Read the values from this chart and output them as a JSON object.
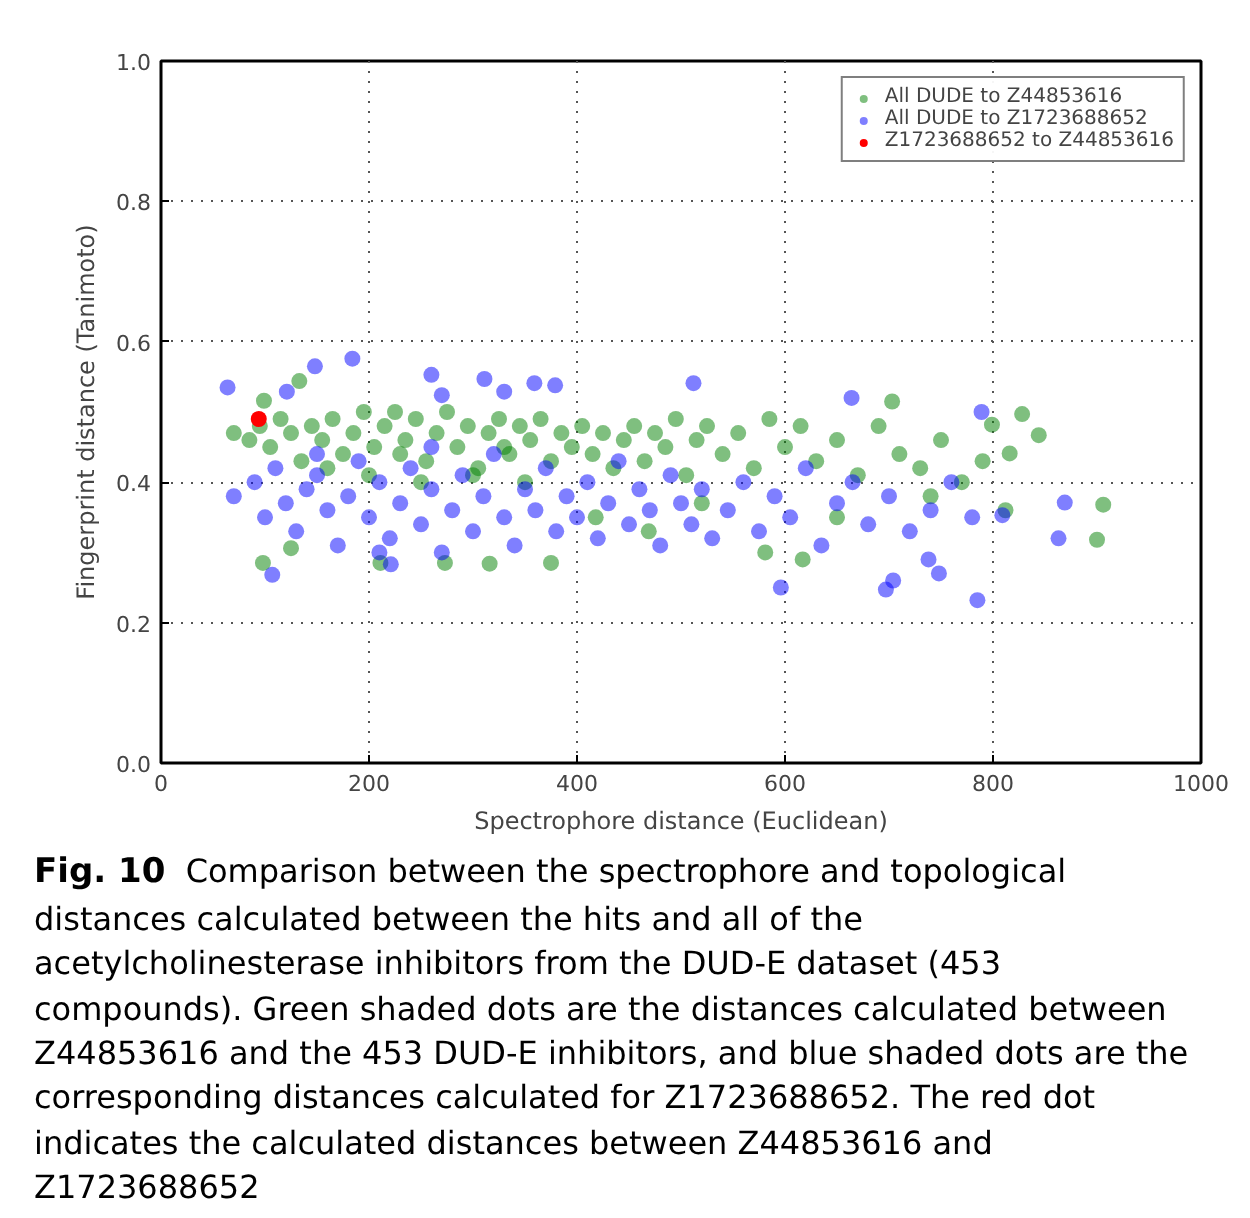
{
  "chart_data": {
    "type": "scatter",
    "xlabel": "Spectrophore distance (Euclidean)",
    "ylabel": "Fingerprint distance (Tanimoto)",
    "xlim": [
      0,
      1000
    ],
    "ylim": [
      0,
      1.0
    ],
    "xticks": [
      0,
      200,
      400,
      600,
      800,
      1000
    ],
    "yticks": [
      {
        "value": 0,
        "label": "0.0"
      },
      {
        "value": 0.2,
        "label": "0.2"
      },
      {
        "value": 0.4,
        "label": "0.4"
      },
      {
        "value": 0.6,
        "label": "0.6"
      },
      {
        "value": 0.8,
        "label": "0.8"
      },
      {
        "value": 1.0,
        "label": "1.0"
      }
    ],
    "grid": true,
    "legend": "top right",
    "marker": "circle",
    "series": [
      {
        "name": "All DUDE to Z44853616",
        "color": "#008000",
        "x": [
          70,
          85,
          95,
          105,
          115,
          125,
          135,
          145,
          155,
          165,
          175,
          185,
          195,
          205,
          215,
          225,
          235,
          245,
          255,
          265,
          275,
          285,
          295,
          305,
          315,
          325,
          335,
          345,
          355,
          365,
          375,
          385,
          395,
          405,
          415,
          425,
          435,
          445,
          455,
          465,
          475,
          485,
          495,
          505,
          515,
          525,
          540,
          555,
          570,
          585,
          600,
          615,
          630,
          650,
          670,
          690,
          710,
          730,
          750,
          770,
          790,
          200,
          250,
          300,
          350,
          160,
          230,
          330,
          99,
          133,
          98,
          125,
          211,
          273,
          316,
          375,
          469,
          581,
          617,
          703,
          799,
          816,
          828,
          844,
          812,
          900,
          906,
          418,
          520,
          650,
          740
        ],
        "values": [
          0.47,
          0.46,
          0.48,
          0.45,
          0.49,
          0.47,
          0.43,
          0.48,
          0.46,
          0.49,
          0.44,
          0.47,
          0.5,
          0.45,
          0.48,
          0.5,
          0.46,
          0.49,
          0.43,
          0.47,
          0.5,
          0.45,
          0.48,
          0.42,
          0.47,
          0.49,
          0.44,
          0.48,
          0.46,
          0.49,
          0.43,
          0.47,
          0.45,
          0.48,
          0.44,
          0.47,
          0.42,
          0.46,
          0.48,
          0.43,
          0.47,
          0.45,
          0.49,
          0.41,
          0.46,
          0.48,
          0.44,
          0.47,
          0.42,
          0.49,
          0.45,
          0.48,
          0.43,
          0.46,
          0.41,
          0.48,
          0.44,
          0.42,
          0.46,
          0.4,
          0.43,
          0.41,
          0.4,
          0.41,
          0.4,
          0.42,
          0.44,
          0.45,
          0.516,
          0.544,
          0.285,
          0.306,
          0.285,
          0.285,
          0.284,
          0.285,
          0.33,
          0.3,
          0.29,
          0.515,
          0.482,
          0.441,
          0.497,
          0.467,
          0.36,
          0.318,
          0.368,
          0.35,
          0.37,
          0.35,
          0.38
        ]
      },
      {
        "name": "All DUDE to Z1723688652",
        "color": "#0000ff",
        "x": [
          70,
          90,
          100,
          110,
          120,
          130,
          140,
          150,
          160,
          170,
          180,
          190,
          200,
          210,
          220,
          230,
          240,
          250,
          260,
          270,
          280,
          290,
          300,
          310,
          320,
          330,
          340,
          350,
          360,
          370,
          380,
          390,
          400,
          410,
          420,
          430,
          440,
          450,
          460,
          470,
          480,
          490,
          500,
          510,
          520,
          530,
          545,
          560,
          575,
          590,
          605,
          620,
          635,
          650,
          665,
          680,
          700,
          720,
          740,
          760,
          780,
          210,
          260,
          150,
          64,
          121,
          148,
          184,
          260,
          270,
          311,
          330,
          359,
          379,
          512,
          664,
          789,
          596,
          697,
          704,
          738,
          748,
          785,
          809,
          863,
          869,
          107,
          221
        ],
        "values": [
          0.38,
          0.4,
          0.35,
          0.42,
          0.37,
          0.33,
          0.39,
          0.41,
          0.36,
          0.31,
          0.38,
          0.43,
          0.35,
          0.4,
          0.32,
          0.37,
          0.42,
          0.34,
          0.39,
          0.3,
          0.36,
          0.41,
          0.33,
          0.38,
          0.44,
          0.35,
          0.31,
          0.39,
          0.36,
          0.42,
          0.33,
          0.38,
          0.35,
          0.4,
          0.32,
          0.37,
          0.43,
          0.34,
          0.39,
          0.36,
          0.31,
          0.41,
          0.37,
          0.34,
          0.39,
          0.32,
          0.36,
          0.4,
          0.33,
          0.38,
          0.35,
          0.42,
          0.31,
          0.37,
          0.4,
          0.34,
          0.38,
          0.33,
          0.36,
          0.4,
          0.35,
          0.3,
          0.45,
          0.44,
          0.535,
          0.529,
          0.565,
          0.576,
          0.553,
          0.524,
          0.547,
          0.529,
          0.541,
          0.538,
          0.541,
          0.52,
          0.5,
          0.25,
          0.247,
          0.26,
          0.29,
          0.27,
          0.232,
          0.353,
          0.32,
          0.371,
          0.268,
          0.283
        ]
      },
      {
        "name": "Z1723688652 to Z44853616",
        "color": "#ff0000",
        "x": [
          94
        ],
        "values": [
          0.49
        ]
      }
    ],
    "annotations": [
      "Fig. 10",
      "Comparison between the spectrophore and topological distances calculated between the hits and all of the acetylcholinesterase inhibitors from the DUD-E dataset (453 compounds). Green shaded dots are the distances calculated between Z44853616 and the 453 DUD-E inhibitors, and blue shaded dots are the corresponding distances calculated for Z1723688652. The red dot indicates the calculated distances between Z44853616 and Z1723688652"
    ]
  }
}
